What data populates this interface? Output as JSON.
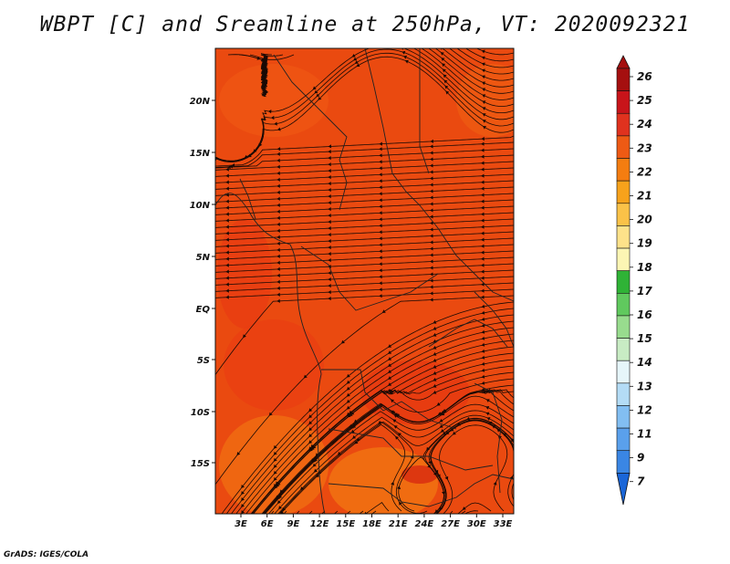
{
  "title": "WBPT [C] and Sreamline at 250hPa, VT: 2020092321",
  "credit": "GrADS: IGES/COLA",
  "map": {
    "lat_labels": [
      "20N",
      "15N",
      "10N",
      "5N",
      "EQ",
      "5S",
      "10S",
      "15S"
    ],
    "lon_labels": [
      "3E",
      "6E",
      "9E",
      "12E",
      "15E",
      "18E",
      "21E",
      "24E",
      "27E",
      "30E",
      "33E"
    ],
    "field_colors": {
      "dominant": "#ea4a10",
      "warm": "#e83a12",
      "cool": "#f06c12"
    }
  },
  "colorbar": {
    "labels": [
      "26",
      "25",
      "24",
      "23",
      "22",
      "21",
      "20",
      "19",
      "18",
      "17",
      "16",
      "15",
      "14",
      "13",
      "12",
      "11",
      "9",
      "7"
    ],
    "colors": [
      "#a50f0f",
      "#c8141a",
      "#e0321e",
      "#ee5a14",
      "#f47d10",
      "#f7a21b",
      "#fac248",
      "#fde28a",
      "#fcf6b4",
      "#2fb336",
      "#60c95e",
      "#98dc8e",
      "#c8ecc4",
      "#e6f6fa",
      "#b4dcf6",
      "#82bef2",
      "#5aa0ec",
      "#3a86e4",
      "#1a66d8"
    ]
  }
}
